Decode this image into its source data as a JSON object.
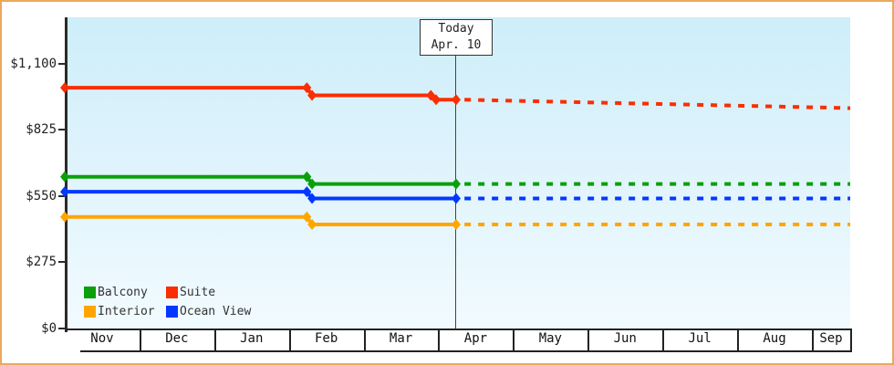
{
  "chart_data": {
    "type": "line",
    "title": "",
    "x_months": [
      "Nov",
      "Dec",
      "Jan",
      "Feb",
      "Mar",
      "Apr",
      "May",
      "Jun",
      "Jul",
      "Aug",
      "Sep"
    ],
    "xlim": [
      0,
      10.513
    ],
    "ylim": [
      0,
      1292
    ],
    "grid": false,
    "legend_position": "bottom-left-inside",
    "y_ticks": [
      {
        "label": "$1,100",
        "value": 1100
      },
      {
        "label": "$825",
        "value": 825
      },
      {
        "label": "$550",
        "value": 550
      },
      {
        "label": "$275",
        "value": 275
      },
      {
        "label": "$0",
        "value": 0
      }
    ],
    "today_line": {
      "x": 5.238,
      "label_line1": "Today",
      "label_line2": "Apr. 10"
    },
    "series": [
      {
        "name": "Suite",
        "color": "#fa2e00",
        "solid": [
          [
            0,
            1000
          ],
          [
            3.24,
            1000
          ],
          [
            3.31,
            968
          ],
          [
            4.9,
            968
          ],
          [
            4.97,
            950
          ],
          [
            5.238,
            950
          ]
        ],
        "dotted": [
          [
            5.35,
            950
          ],
          [
            10.513,
            915
          ]
        ]
      },
      {
        "name": "Balcony",
        "color": "#0aa00a",
        "solid": [
          [
            0,
            630
          ],
          [
            3.24,
            630
          ],
          [
            3.31,
            600
          ],
          [
            5.238,
            600
          ]
        ],
        "dotted": [
          [
            5.35,
            600
          ],
          [
            10.513,
            600
          ]
        ]
      },
      {
        "name": "Ocean View",
        "color": "#0038ff",
        "solid": [
          [
            0,
            568
          ],
          [
            3.24,
            568
          ],
          [
            3.31,
            540
          ],
          [
            5.238,
            540
          ]
        ],
        "dotted": [
          [
            5.35,
            540
          ],
          [
            10.513,
            540
          ]
        ]
      },
      {
        "name": "Interior",
        "color": "#ffa500",
        "solid": [
          [
            0,
            463
          ],
          [
            3.24,
            463
          ],
          [
            3.31,
            432
          ],
          [
            5.238,
            432
          ]
        ],
        "dotted": [
          [
            5.35,
            432
          ],
          [
            10.513,
            432
          ]
        ]
      }
    ],
    "legend_order": [
      "Balcony",
      "Suite",
      "Interior",
      "Ocean View"
    ]
  },
  "colors": {
    "page_border": "#eaa95e",
    "axis": "#2b2b2b",
    "band_border": "#222222",
    "today_line": "#444444",
    "plot_bg_top": "#cdeefa",
    "plot_bg_bottom": "#f1fbff"
  }
}
